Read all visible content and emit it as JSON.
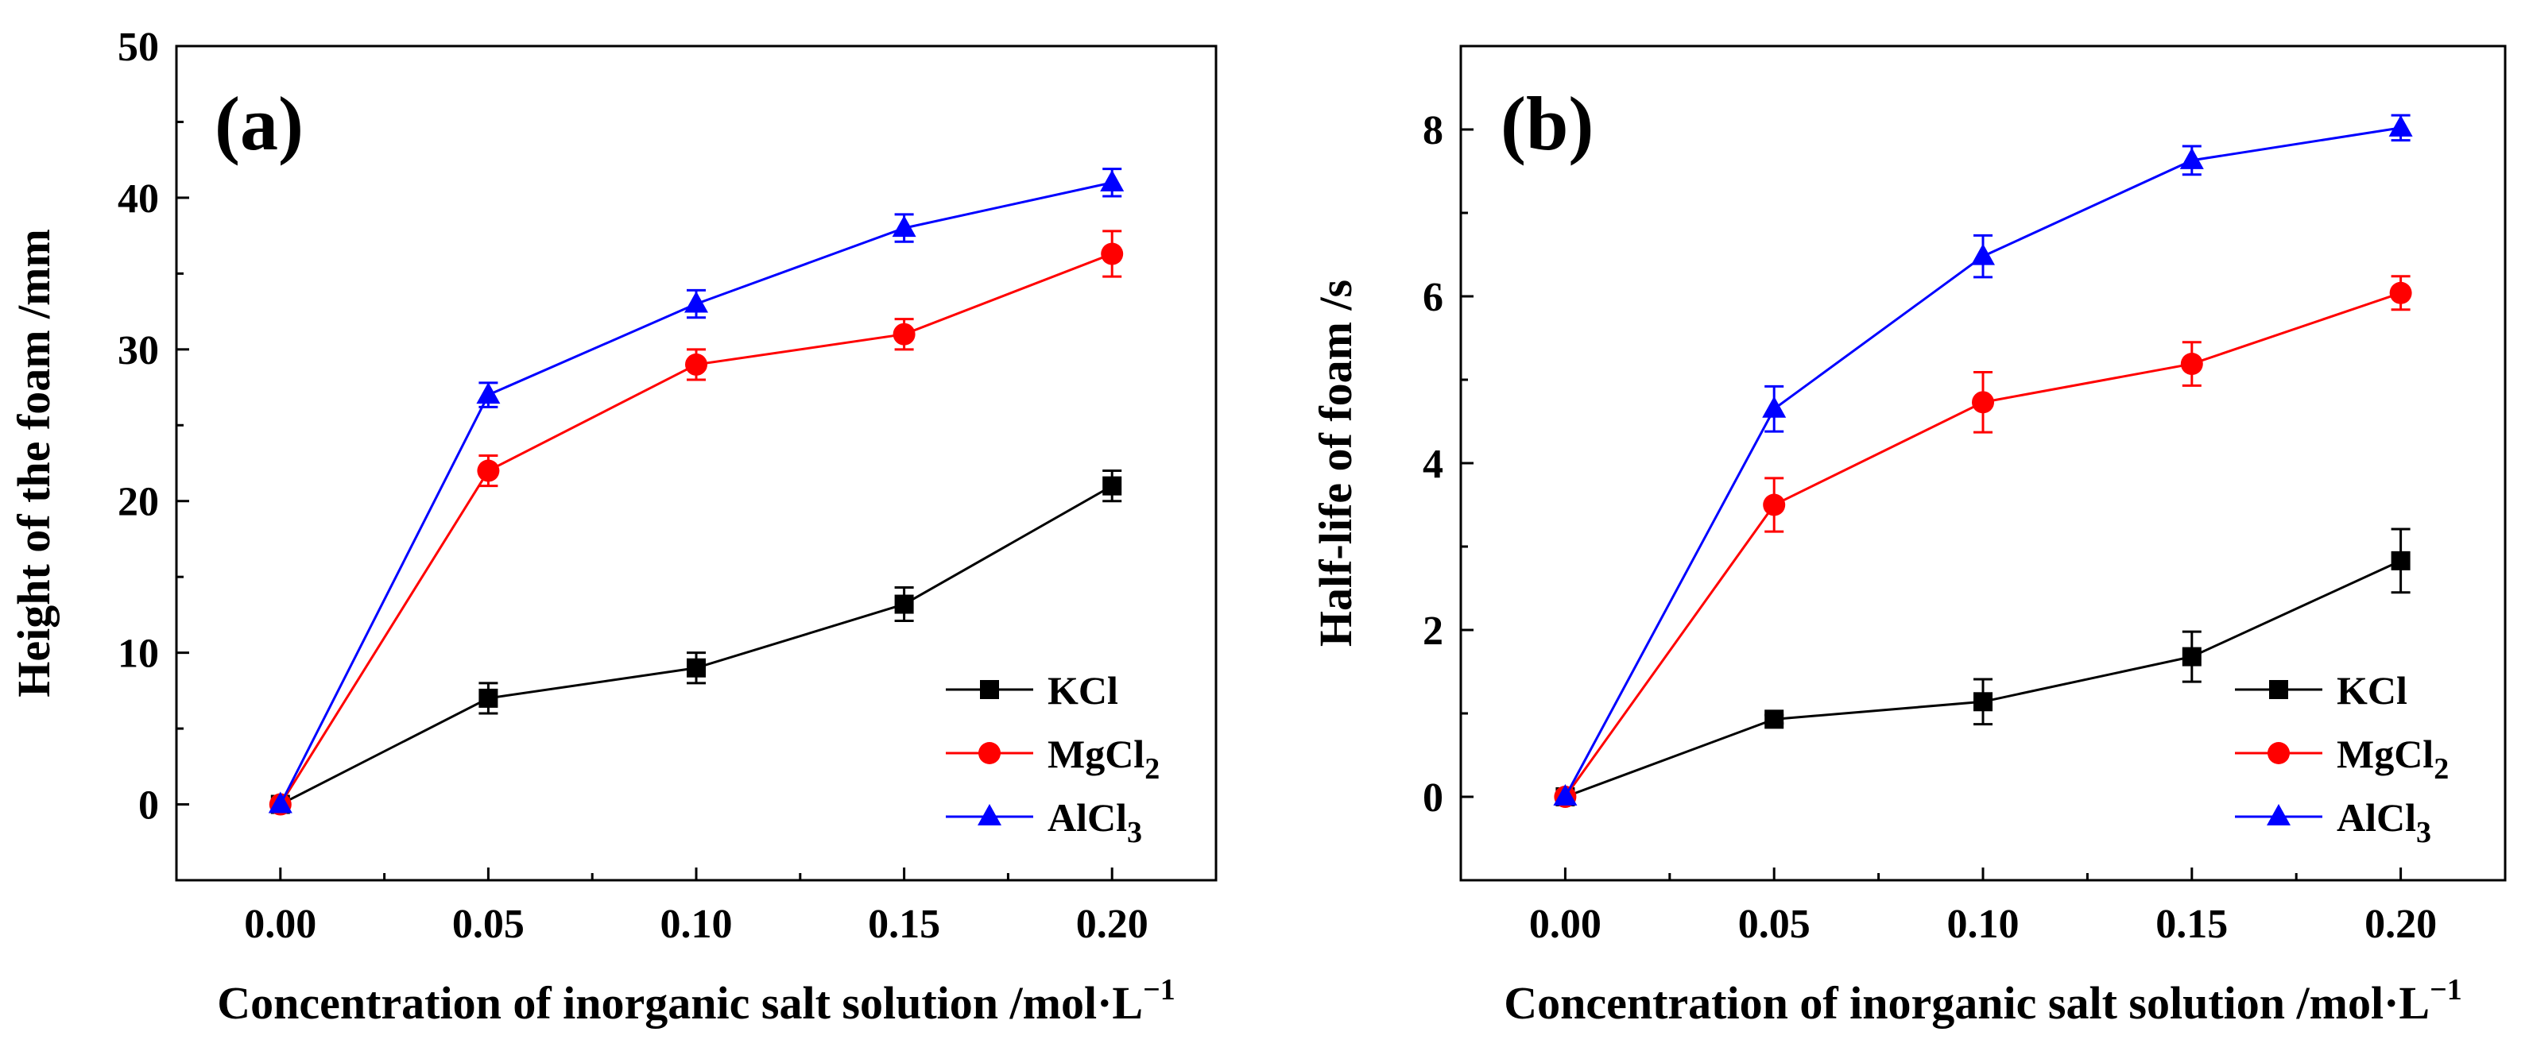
{
  "chart_data": [
    {
      "type": "line",
      "panel_label": "(a)",
      "x": [
        0.0,
        0.05,
        0.1,
        0.15,
        0.2
      ],
      "x_tick_labels": [
        "0.00",
        "0.05",
        "0.10",
        "0.15",
        "0.20"
      ],
      "xlim": [
        -0.025,
        0.225
      ],
      "ylim": [
        -5,
        50
      ],
      "y_ticks": [
        0,
        10,
        20,
        30,
        40,
        50
      ],
      "y_tick_labels": [
        "0",
        "10",
        "20",
        "30",
        "40",
        "50"
      ],
      "xlabel": "Concentration of inorganic salt solution /mol·L",
      "xlabel_sup": "−1",
      "ylabel": "Height of the foam /mm",
      "legend_position": "lower-right",
      "series": [
        {
          "name": "KCl",
          "name_base": "KCl",
          "name_sub": "",
          "marker": "square",
          "color": "#000000",
          "values": [
            0,
            7.0,
            9.0,
            13.2,
            21.0
          ],
          "errors": [
            0,
            1.0,
            1.0,
            1.1,
            1.0
          ]
        },
        {
          "name": "MgCl2",
          "name_base": "MgCl",
          "name_sub": "2",
          "marker": "circle",
          "color": "#ff0000",
          "values": [
            0,
            22.0,
            29.0,
            31.0,
            36.3
          ],
          "errors": [
            0,
            1.0,
            1.0,
            1.0,
            1.5
          ]
        },
        {
          "name": "AlCl3",
          "name_base": "AlCl",
          "name_sub": "3",
          "marker": "triangle",
          "color": "#0000ff",
          "values": [
            0,
            27.0,
            33.0,
            38.0,
            41.0
          ],
          "errors": [
            0,
            0.8,
            0.9,
            0.9,
            0.9
          ]
        }
      ]
    },
    {
      "type": "line",
      "panel_label": "(b)",
      "x": [
        0.0,
        0.05,
        0.1,
        0.15,
        0.2
      ],
      "x_tick_labels": [
        "0.00",
        "0.05",
        "0.10",
        "0.15",
        "0.20"
      ],
      "xlim": [
        -0.025,
        0.225
      ],
      "ylim": [
        -1,
        9
      ],
      "y_ticks": [
        0,
        2,
        4,
        6,
        8
      ],
      "y_tick_labels": [
        "0",
        "2",
        "4",
        "6",
        "8"
      ],
      "xlabel": "Concentration of inorganic salt solution /mol·L",
      "xlabel_sup": "−1",
      "ylabel": "Half-life of foam /s",
      "legend_position": "lower-right",
      "series": [
        {
          "name": "KCl",
          "name_base": "KCl",
          "name_sub": "",
          "marker": "square",
          "color": "#000000",
          "values": [
            0,
            0.93,
            1.14,
            1.68,
            2.83
          ],
          "errors": [
            0,
            0.05,
            0.27,
            0.3,
            0.38
          ]
        },
        {
          "name": "MgCl2",
          "name_base": "MgCl",
          "name_sub": "2",
          "marker": "circle",
          "color": "#ff0000",
          "values": [
            0,
            3.5,
            4.73,
            5.19,
            6.04
          ],
          "errors": [
            0,
            0.32,
            0.36,
            0.26,
            0.2
          ]
        },
        {
          "name": "AlCl3",
          "name_base": "AlCl",
          "name_sub": "3",
          "marker": "triangle",
          "color": "#0000ff",
          "values": [
            0,
            4.65,
            6.48,
            7.63,
            8.02
          ],
          "errors": [
            0,
            0.27,
            0.25,
            0.17,
            0.15
          ]
        }
      ]
    }
  ]
}
